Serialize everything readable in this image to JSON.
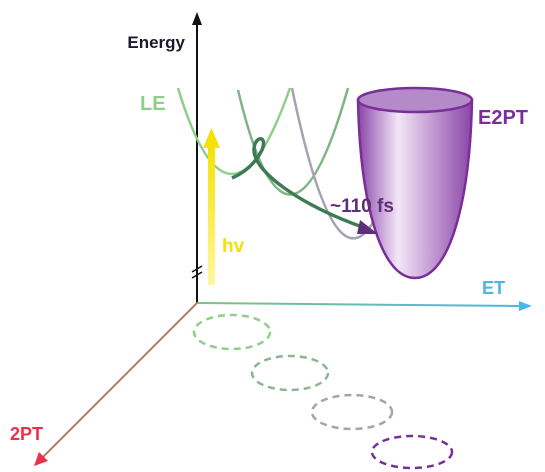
{
  "labels": {
    "energy": "Energy",
    "le": "LE",
    "e2pt": "E2PT",
    "hv": "hv",
    "time": "~110 fs",
    "et": "ET",
    "pt": "2PT"
  }
}
